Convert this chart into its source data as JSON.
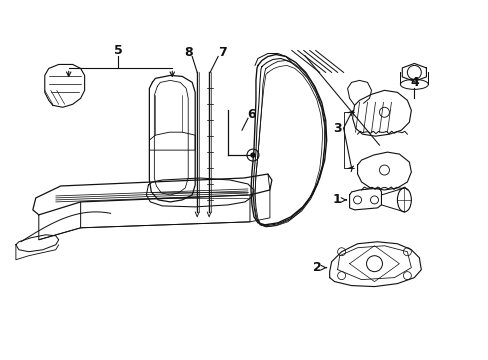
{
  "bg_color": "#ffffff",
  "line_color": "#111111",
  "lw": 0.9,
  "fig_width": 4.89,
  "fig_height": 3.6,
  "dpi": 100
}
